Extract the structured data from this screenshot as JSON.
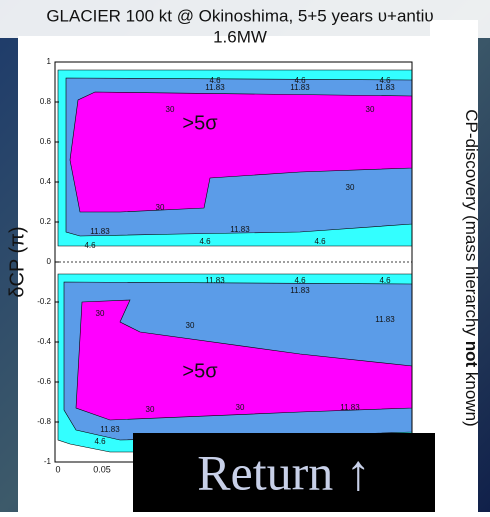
{
  "title": "GLACIER 100 kt @ Okinoshima, 5+5 years υ+antiυ",
  "subtitle": "1.6MW",
  "y_label": "δCP (π)",
  "side_label": [
    "CP-discovery (mass hierarchy ",
    "not",
    " known)"
  ],
  "ylim": [
    -1,
    1
  ],
  "yticks": [
    1,
    0.8,
    0.6,
    0.4,
    0.2,
    0,
    -0.2,
    -0.4,
    -0.6,
    -0.8,
    -1
  ],
  "xticks": [
    "0",
    "0.05"
  ],
  "region_labels": [
    ">5σ",
    ">5σ"
  ],
  "contour_labels": [
    4.6,
    11.83,
    4.6,
    11.83,
    4.6,
    11.83,
    30,
    30,
    30,
    30,
    11.83,
    11.83,
    4.6,
    4.6,
    4.6,
    11.83,
    4.6,
    11.83,
    4.6,
    11.83,
    30,
    30,
    30,
    30,
    11.83,
    11.83,
    4.6
  ],
  "button": "Return ↑"
}
